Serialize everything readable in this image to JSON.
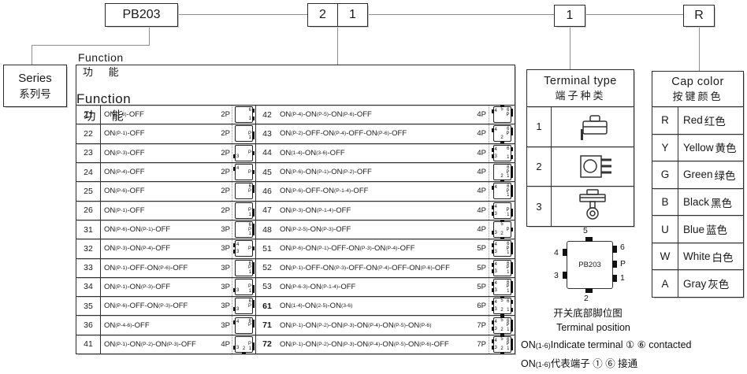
{
  "top_boxes": {
    "series_code": "PB203",
    "function_codes": [
      "2",
      "1"
    ],
    "terminal_code": "1",
    "color_code": "R"
  },
  "series": {
    "en": "Series",
    "cn": "系列号"
  },
  "function_table": {
    "header": [
      {
        "en": "Function",
        "cn": "功 能"
      },
      {
        "en": "Function",
        "cn": "功 能"
      }
    ],
    "left_rows": [
      {
        "code": "21",
        "desc": "ON(1-6)-OFF",
        "poles": "2P",
        "pins": [
          "1",
          "6"
        ],
        "bold": false
      },
      {
        "code": "22",
        "desc": "ON(P-1)-OFF",
        "poles": "2P",
        "pins": [
          "P",
          "1"
        ],
        "bold": false
      },
      {
        "code": "23",
        "desc": "ON(P-3)-OFF",
        "poles": "2P",
        "pins": [
          "P",
          "3"
        ],
        "bold": false
      },
      {
        "code": "24",
        "desc": "ON(P-4)-OFF",
        "poles": "2P",
        "pins": [
          "P",
          "4"
        ],
        "bold": false
      },
      {
        "code": "25",
        "desc": "ON(P-6)-OFF",
        "poles": "2P",
        "pins": [
          "P",
          "6"
        ],
        "bold": false
      },
      {
        "code": "26",
        "desc": "ON(P-1)-OFF",
        "poles": "2P",
        "pins": [
          "P",
          "1"
        ],
        "bold": false
      },
      {
        "code": "31",
        "desc": "ON(P-6)-ON(P-1)-OFF",
        "poles": "3P",
        "pins": [
          "6",
          "P",
          "1"
        ],
        "bold": false
      },
      {
        "code": "32",
        "desc": "ON(P-3)-ON(P-4)-OFF",
        "poles": "3P",
        "pins": [
          "P",
          "3",
          "4"
        ],
        "bold": false
      },
      {
        "code": "33",
        "desc": "ON(P-1)-OFF-ON(P-6)-OFF",
        "poles": "3P",
        "pins": [
          "6",
          "P",
          "1"
        ],
        "bold": false
      },
      {
        "code": "34",
        "desc": "ON(P-1)-ON(P-3)-OFF",
        "poles": "3P",
        "pins": [
          "P",
          "1",
          "3"
        ],
        "bold": false
      },
      {
        "code": "35",
        "desc": "ON(P-6)-OFF-ON(P-3)-OFF",
        "poles": "3P",
        "pins": [
          "6",
          "P",
          "3"
        ],
        "bold": false
      },
      {
        "code": "36",
        "desc": "ON(P-4-6)-OFF",
        "poles": "3P",
        "pins": [
          "4",
          "6",
          "P"
        ],
        "bold": false
      },
      {
        "code": "41",
        "desc": "ON(P-1)-ON(P-2)-ON(P-3)-OFF",
        "poles": "4P",
        "pins": [
          "P",
          "1",
          "2",
          "3"
        ],
        "bold": false
      }
    ],
    "right_rows": [
      {
        "code": "42",
        "desc": "ON(P-4)-ON(P-5)-ON(P-6)-OFF",
        "poles": "4P",
        "pins": [
          "4",
          "5",
          "6",
          "P"
        ],
        "bold": false
      },
      {
        "code": "43",
        "desc": "ON(P-2)-OFF-ON(P-4)-OFF-ON(P-6)-OFF",
        "poles": "4P",
        "pins": [
          "P",
          "2",
          "4",
          "6"
        ],
        "bold": false
      },
      {
        "code": "44",
        "desc": "ON(1-4)-ON(3-6)-OFF",
        "poles": "4P",
        "pins": [
          "1",
          "3",
          "4",
          "6"
        ],
        "bold": false
      },
      {
        "code": "45",
        "desc": "ON(P-6)-ON(P-1)-ON(P-2)-OFF",
        "poles": "4P",
        "pins": [
          "6",
          "P",
          "1",
          "2"
        ],
        "bold": false
      },
      {
        "code": "46",
        "desc": "ON(P-6)-OFF-ON(P-1-4)-OFF",
        "poles": "4P",
        "pins": [
          "4",
          "6",
          "P",
          "1"
        ],
        "bold": false
      },
      {
        "code": "47",
        "desc": "ON(P-3)-ON(P-1-4)-OFF",
        "poles": "4P",
        "pins": [
          "4",
          "P",
          "1",
          "3"
        ],
        "bold": false
      },
      {
        "code": "48",
        "desc": "ON(P-2-5)-ON(P-3)-OFF",
        "poles": "4P",
        "pins": [
          "5",
          "P",
          "2",
          "3"
        ],
        "bold": false
      },
      {
        "code": "51",
        "desc": "ON(P-6)-ON(P-1)-OFF-ON(P-3)-ON(P-4)-OFF",
        "poles": "5P",
        "pins": [
          "4",
          "6",
          "P",
          "3",
          "1"
        ],
        "bold": false
      },
      {
        "code": "52",
        "desc": "ON(P-1)-OFF-ON(P-3)-OFF-ON(P-4)-OFF-ON(P-6)-OFF",
        "poles": "5P",
        "pins": [
          "4",
          "6",
          "P",
          "3",
          "1"
        ],
        "bold": false
      },
      {
        "code": "53",
        "desc": "ON(P-6-3)-ON(P-1-4)-OFF",
        "poles": "5P",
        "pins": [
          "4",
          "6",
          "P",
          "3",
          "1"
        ],
        "bold": false
      },
      {
        "code": "61",
        "desc": "ON(1-4)-ON(2-5)-ON(3-6)",
        "poles": "6P",
        "pins": [
          "4",
          "5",
          "6",
          "3",
          "2",
          "1"
        ],
        "bold": true
      },
      {
        "code": "71",
        "desc": "ON(P-1)-ON(P-2)-ON(P-3)-ON(P-4)-ON(P-5)-ON(P-6)",
        "poles": "7P",
        "pins": [
          "4",
          "5",
          "6",
          "P",
          "3",
          "2",
          "1"
        ],
        "bold": true
      },
      {
        "code": "72",
        "desc": "ON(P-1)-ON(P-2)-ON(P-3)-ON(P-4)-ON(P-5)-ON(P-6)-OFF",
        "poles": "7P",
        "pins": [
          "4",
          "5",
          "6",
          "P",
          "3",
          "2",
          "1"
        ],
        "bold": true
      }
    ]
  },
  "terminal_type": {
    "title_en": "Terminal type",
    "title_cn": "端子种类",
    "rows": [
      {
        "code": "1",
        "icon": "pcb-right-angle-terminal-icon"
      },
      {
        "code": "2",
        "icon": "pcb-straight-terminal-icon"
      },
      {
        "code": "3",
        "icon": "solder-lug-terminal-icon"
      }
    ]
  },
  "cap_color": {
    "title_en": "Cap color",
    "title_cn": "按键颜色",
    "rows": [
      {
        "code": "R",
        "en": "Red",
        "cn": "红色"
      },
      {
        "code": "Y",
        "en": "Yellow",
        "cn": "黄色"
      },
      {
        "code": "G",
        "en": "Green",
        "cn": "绿色"
      },
      {
        "code": "B",
        "en": "Black",
        "cn": "黑色"
      },
      {
        "code": "U",
        "en": "Blue",
        "cn": "蓝色"
      },
      {
        "code": "W",
        "en": "White",
        "cn": "白色"
      },
      {
        "code": "A",
        "en": "Gray",
        "cn": "灰色"
      }
    ]
  },
  "pin_diagram": {
    "label": "PB203",
    "pins": {
      "top": [
        "5"
      ],
      "left": [
        "4",
        "3"
      ],
      "right": [
        "6",
        "P",
        "1"
      ],
      "bottom": [
        "2"
      ]
    },
    "caption_cn": "开关底部脚位图",
    "caption_en": "Terminal position",
    "note_en": {
      "on": "ON",
      "sub": "(1-6)",
      "text": "Indicate terminal ① ⑥  contacted"
    },
    "note_cn": {
      "on": "ON",
      "sub": "(1-6)",
      "text": "代表端子  ① ⑥  接通"
    }
  }
}
